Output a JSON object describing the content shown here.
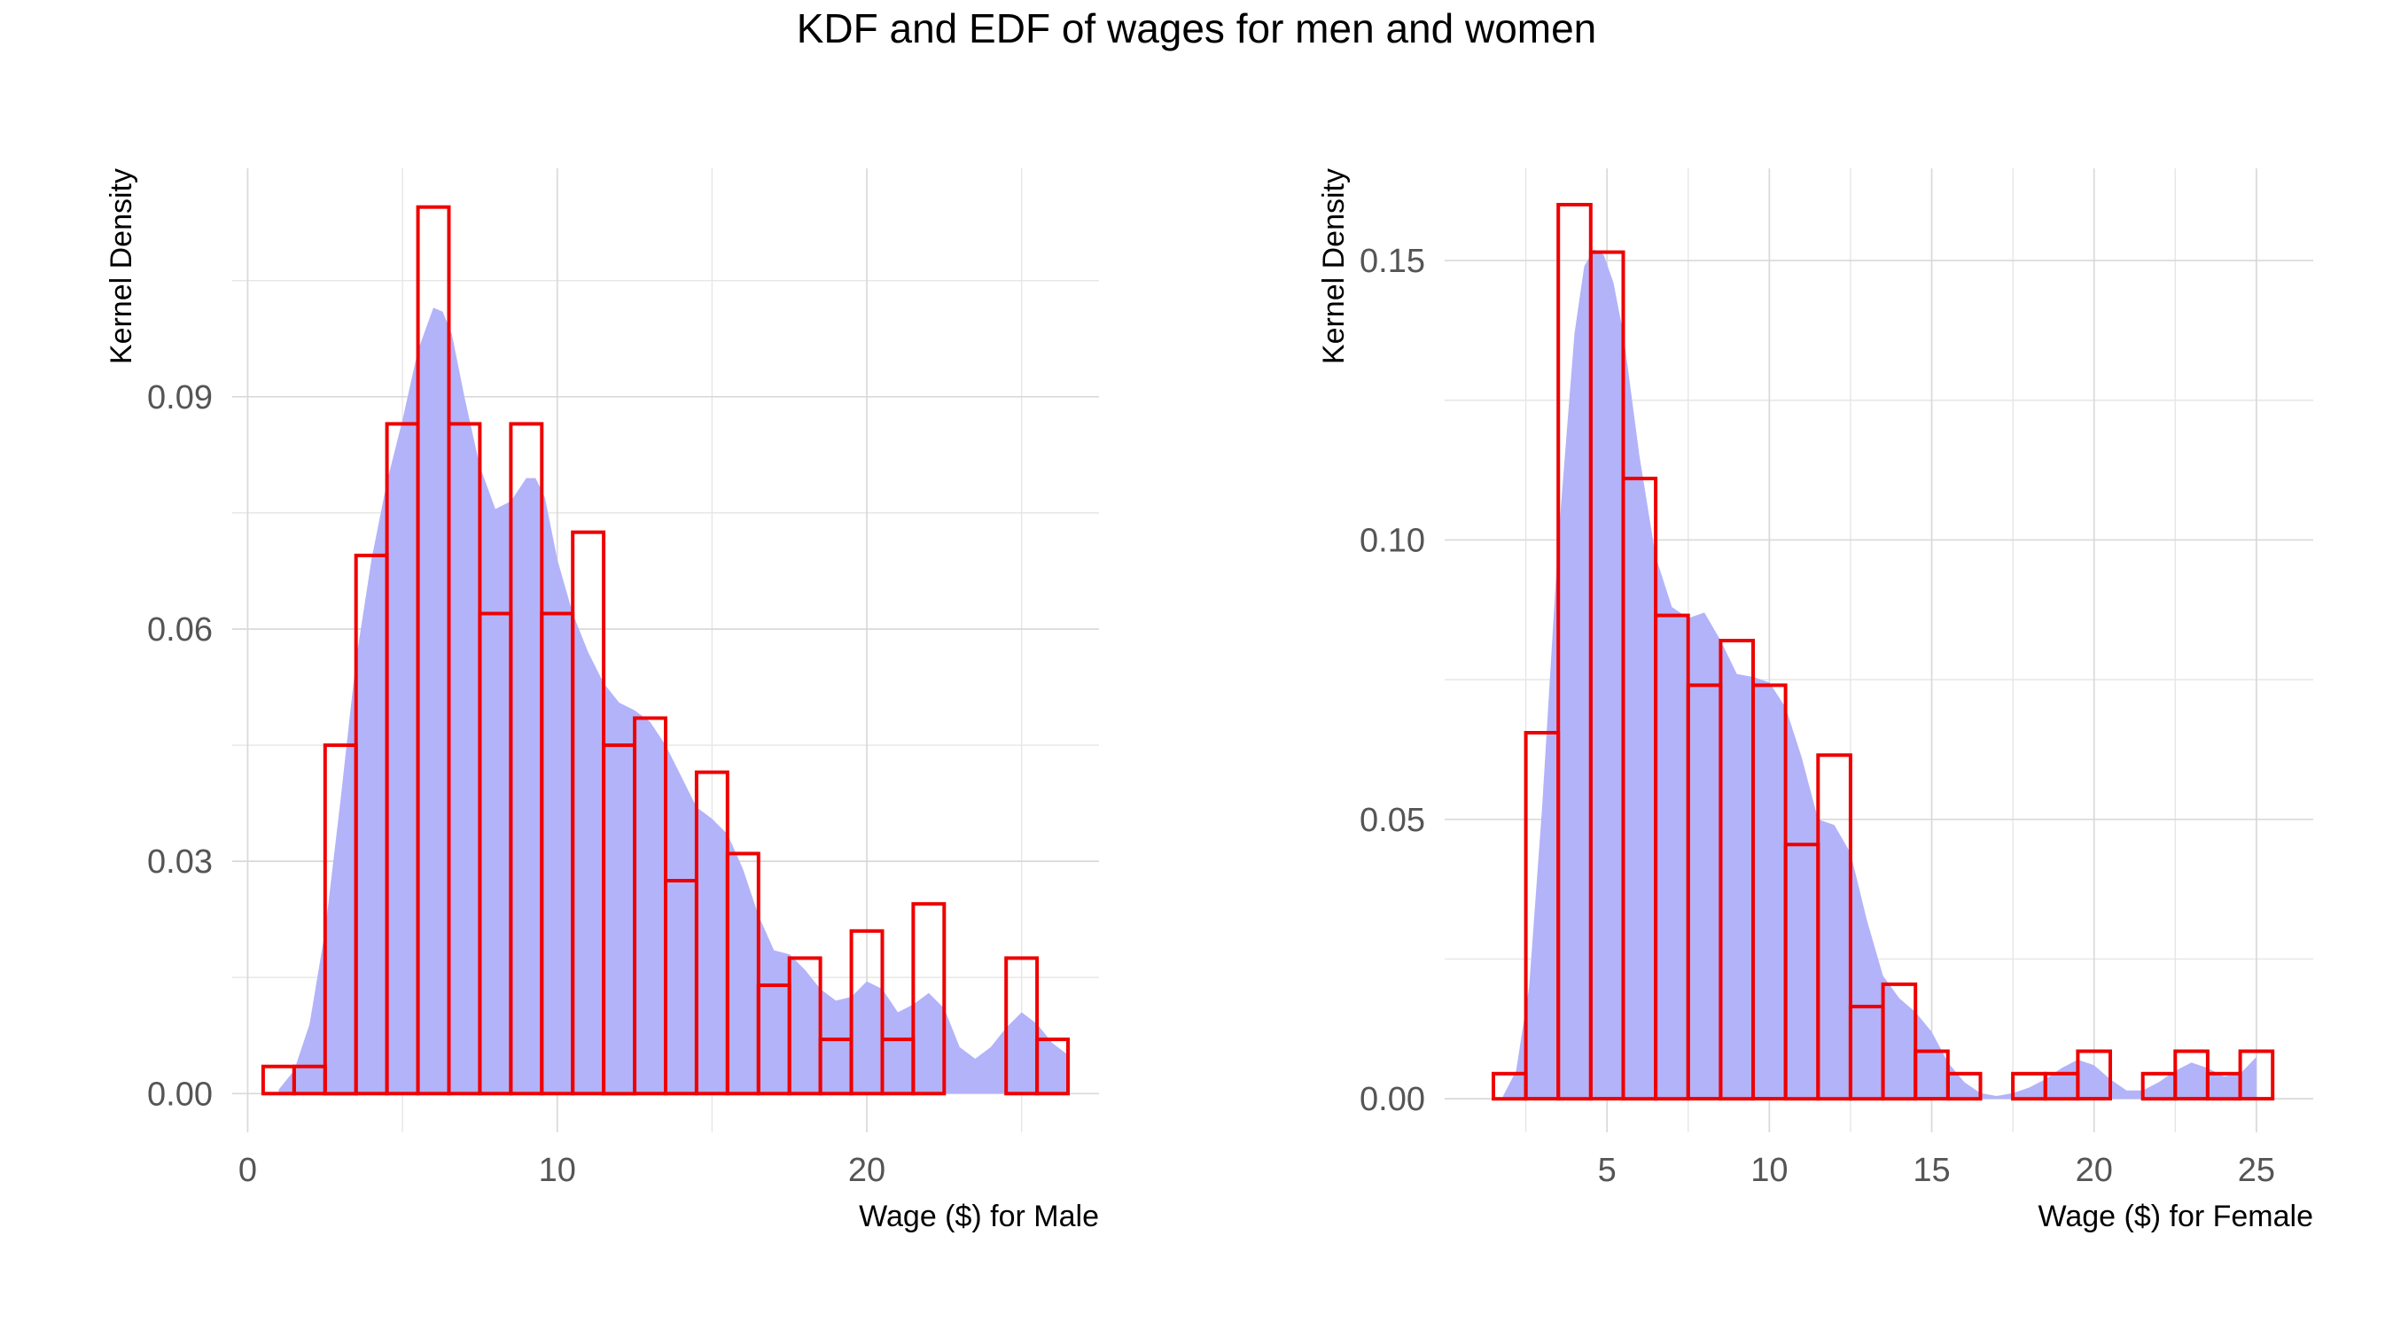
{
  "title": "KDF and EDF of wages for men and women",
  "colors": {
    "density_fill": "#b3b3fa",
    "histogram_outline": "#ee0000",
    "grid": "#d9d9d9"
  },
  "chart_data": [
    {
      "type": "bar",
      "panel": "male",
      "xlabel": "Wage ($) for Male",
      "ylabel": "Kernel Density",
      "xlim": [
        -0.5,
        27.5
      ],
      "ylim": [
        -0.005,
        0.1195
      ],
      "x_ticks": [
        0,
        10,
        20
      ],
      "x_tick_labels": [
        "0",
        "10",
        "20"
      ],
      "y_ticks": [
        0,
        0.03,
        0.06,
        0.09
      ],
      "y_tick_labels": [
        "0.00",
        "0.03",
        "0.06",
        "0.09"
      ],
      "grid": true,
      "histogram": {
        "bin_edges": [
          0.5,
          1.5,
          2.5,
          3.5,
          4.5,
          5.5,
          6.5,
          7.5,
          8.5,
          9.5,
          10.5,
          11.5,
          12.5,
          13.5,
          14.5,
          15.5,
          16.5,
          17.5,
          18.5,
          19.5,
          20.5,
          21.5,
          22.5,
          23.5,
          24.5,
          25.5,
          26.5
        ],
        "values": [
          0.0035,
          0.0035,
          0.045,
          0.0695,
          0.0865,
          0.1145,
          0.0865,
          0.062,
          0.0865,
          0.062,
          0.0725,
          0.045,
          0.0485,
          0.0275,
          0.0415,
          0.031,
          0.014,
          0.0175,
          0.007,
          0.021,
          0.007,
          0.0245,
          0.0,
          0.0,
          0.0175,
          0.007
        ]
      },
      "density": {
        "x": [
          1.0,
          1.5,
          2.0,
          2.5,
          3.0,
          3.5,
          4.0,
          4.5,
          5.0,
          5.5,
          6.0,
          6.3,
          6.6,
          7.0,
          7.5,
          8.0,
          8.5,
          9.0,
          9.3,
          9.6,
          10.0,
          10.5,
          11.0,
          11.5,
          12.0,
          12.5,
          13.0,
          13.5,
          14.0,
          14.5,
          15.0,
          15.5,
          16.0,
          16.5,
          17.0,
          17.5,
          18.0,
          18.5,
          19.0,
          19.5,
          20.0,
          20.5,
          21.0,
          21.5,
          22.0,
          22.5,
          23.0,
          23.5,
          24.0,
          24.5,
          25.0,
          25.5,
          26.0,
          26.5
        ],
        "y": [
          0.0005,
          0.003,
          0.009,
          0.021,
          0.038,
          0.056,
          0.069,
          0.079,
          0.087,
          0.096,
          0.1015,
          0.101,
          0.098,
          0.09,
          0.081,
          0.0755,
          0.0765,
          0.0795,
          0.0795,
          0.077,
          0.069,
          0.062,
          0.057,
          0.053,
          0.0505,
          0.0495,
          0.048,
          0.045,
          0.041,
          0.037,
          0.0355,
          0.0335,
          0.029,
          0.023,
          0.0185,
          0.018,
          0.016,
          0.0135,
          0.012,
          0.0125,
          0.0145,
          0.0135,
          0.0105,
          0.0115,
          0.013,
          0.011,
          0.006,
          0.0045,
          0.006,
          0.0085,
          0.0105,
          0.009,
          0.0065,
          0.005
        ]
      }
    },
    {
      "type": "bar",
      "panel": "female",
      "xlabel": "Wage ($) for Female",
      "ylabel": "Kernel Density",
      "xlim": [
        0.0,
        26.75
      ],
      "ylim": [
        -0.006,
        0.1665
      ],
      "x_ticks": [
        5,
        10,
        15,
        20,
        25
      ],
      "x_tick_labels": [
        "5",
        "10",
        "15",
        "20",
        "25"
      ],
      "y_ticks": [
        0,
        0.05,
        0.1,
        0.15
      ],
      "y_tick_labels": [
        "0.00",
        "0.05",
        "0.10",
        "0.15"
      ],
      "grid": true,
      "histogram": {
        "bin_edges": [
          1.5,
          2.5,
          3.5,
          4.5,
          5.5,
          6.5,
          7.5,
          8.5,
          9.5,
          10.5,
          11.5,
          12.5,
          13.5,
          14.5,
          15.5,
          16.5,
          17.5,
          18.5,
          19.5,
          20.5,
          21.5,
          22.5,
          23.5,
          24.5,
          25.5
        ],
        "values": [
          0.0045,
          0.0655,
          0.16,
          0.1515,
          0.111,
          0.0865,
          0.074,
          0.082,
          0.074,
          0.0455,
          0.0615,
          0.0165,
          0.0205,
          0.0085,
          0.0045,
          0.0,
          0.0045,
          0.0045,
          0.0085,
          0.0,
          0.0045,
          0.0085,
          0.0045,
          0.0085
        ]
      },
      "density": {
        "x": [
          1.8,
          2.2,
          2.6,
          3.0,
          3.5,
          4.0,
          4.3,
          4.6,
          4.9,
          5.2,
          5.5,
          6.0,
          6.5,
          7.0,
          7.5,
          8.0,
          8.5,
          9.0,
          9.5,
          10.0,
          10.5,
          11.0,
          11.5,
          12.0,
          12.5,
          13.0,
          13.5,
          14.0,
          14.5,
          15.0,
          15.5,
          16.0,
          16.5,
          17.0,
          17.5,
          18.0,
          18.5,
          19.0,
          19.5,
          20.0,
          20.5,
          21.0,
          21.5,
          22.0,
          22.5,
          23.0,
          23.5,
          24.0,
          24.5,
          25.0
        ],
        "y": [
          0.0005,
          0.005,
          0.02,
          0.052,
          0.1,
          0.137,
          0.149,
          0.152,
          0.151,
          0.146,
          0.137,
          0.115,
          0.097,
          0.088,
          0.086,
          0.087,
          0.082,
          0.076,
          0.0755,
          0.0745,
          0.07,
          0.061,
          0.05,
          0.049,
          0.044,
          0.032,
          0.022,
          0.018,
          0.0155,
          0.012,
          0.0065,
          0.003,
          0.001,
          0.0005,
          0.001,
          0.002,
          0.0035,
          0.0055,
          0.007,
          0.006,
          0.0035,
          0.0015,
          0.0015,
          0.003,
          0.005,
          0.0065,
          0.0055,
          0.004,
          0.0045,
          0.0075
        ]
      }
    }
  ]
}
